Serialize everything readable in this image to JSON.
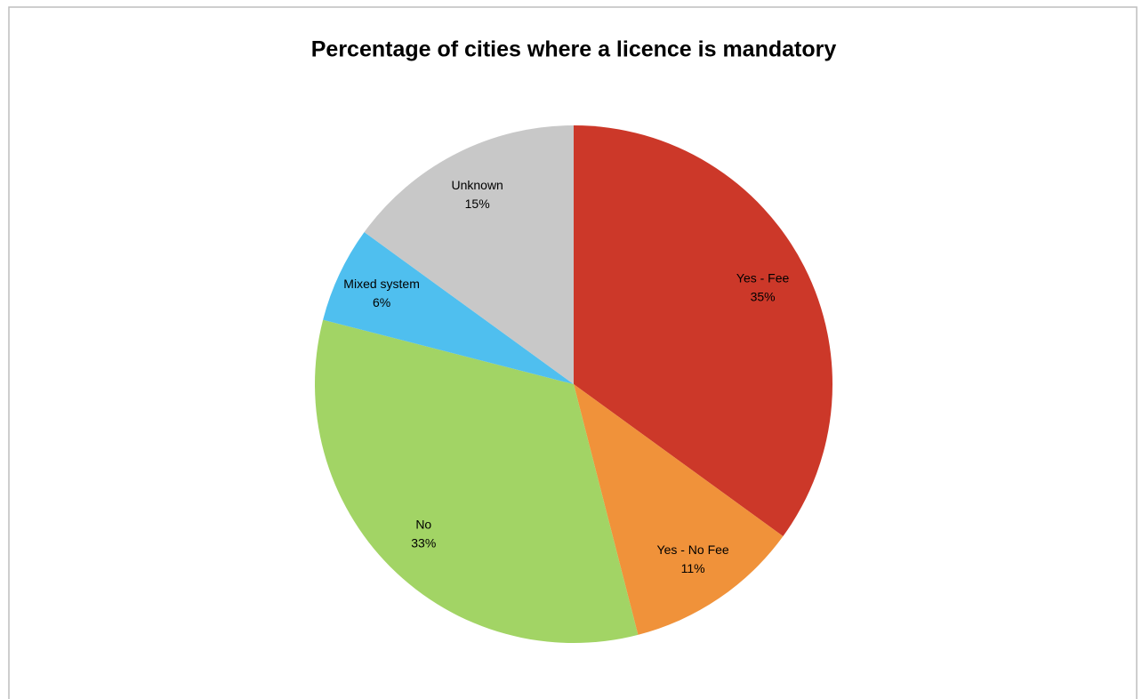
{
  "chart_data": {
    "type": "pie",
    "title": "Percentage of cities where a licence is mandatory",
    "categories": [
      "Yes - Fee",
      "Yes - No Fee",
      "No",
      "Mixed system",
      "Unknown"
    ],
    "values": [
      35,
      11,
      33,
      6,
      15
    ],
    "value_labels": [
      "35%",
      "11%",
      "33%",
      "6%",
      "15%"
    ],
    "colors": [
      "#cc3829",
      "#f0923a",
      "#a2d465",
      "#4fbfef",
      "#c8c8c8"
    ]
  }
}
